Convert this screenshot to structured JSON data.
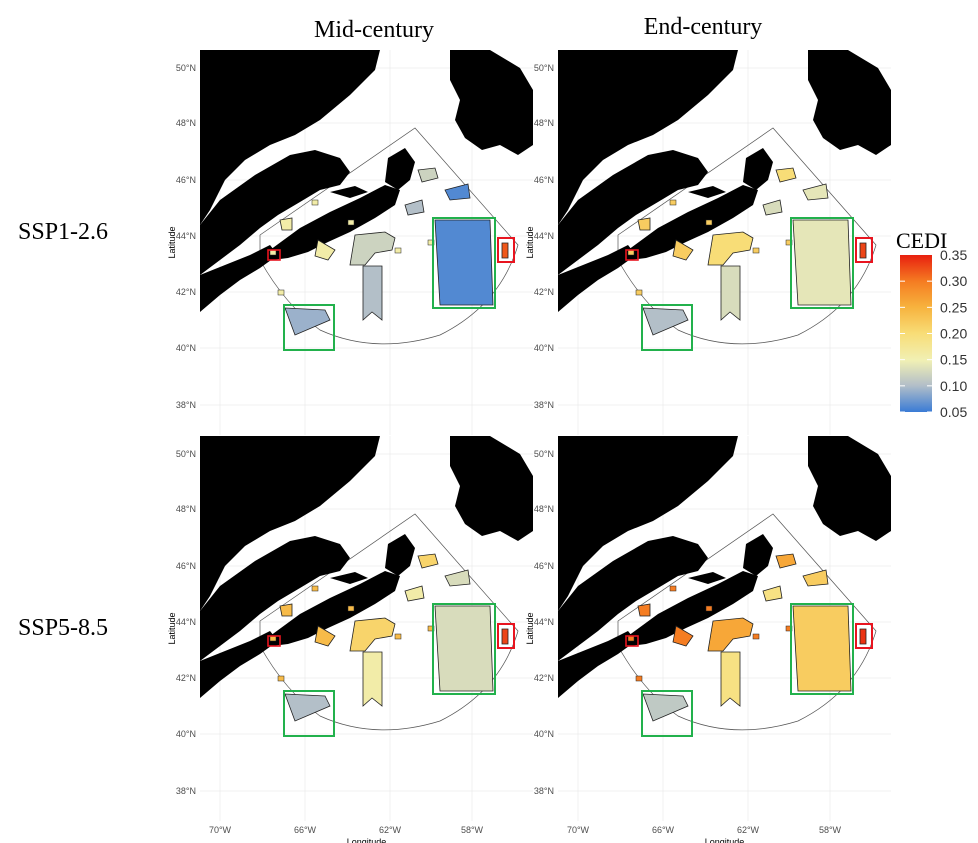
{
  "columns": [
    "Mid-century",
    "End-century"
  ],
  "rows": [
    "SSP1-2.6",
    "SSP5-8.5"
  ],
  "axes": {
    "latitude_ticks": [
      "50°N",
      "48°N",
      "46°N",
      "44°N",
      "42°N",
      "40°N",
      "38°N"
    ],
    "longitude_ticks": [
      "70°W",
      "66°W",
      "62°W",
      "58°W"
    ],
    "ylabel": "Latitude",
    "xlabel": "Longitude"
  },
  "legend": {
    "title": "CEDI",
    "ticks": [
      "0.35",
      "0.30",
      "0.25",
      "0.20",
      "0.15",
      "0.10",
      "0.05"
    ],
    "colors": [
      "#e8200f",
      "#f57d22",
      "#f7b23d",
      "#f8dd77",
      "#f1f0b4",
      "#b3bfc8",
      "#3a7bd5"
    ]
  },
  "colors": {
    "land": "#000000",
    "highlight_green": "#22b14c",
    "highlight_red": "#e8141f",
    "grid": "#ebebeb"
  },
  "chart_data": {
    "type": "heatmap",
    "value_label": "CEDI",
    "range": [
      0.05,
      0.35
    ],
    "panels": [
      {
        "row": "SSP1-2.6",
        "col": "Mid-century",
        "green_west": 0.09,
        "green_east": 0.06,
        "red_east": 0.32,
        "central_large": 0.12,
        "central_tall": 0.1,
        "west_small": 0.16
      },
      {
        "row": "SSP1-2.6",
        "col": "End-century",
        "green_west": 0.1,
        "green_east": 0.14,
        "red_east": 0.33,
        "central_large": 0.2,
        "central_tall": 0.13,
        "west_small": 0.22
      },
      {
        "row": "SSP5-8.5",
        "col": "Mid-century",
        "green_west": 0.1,
        "green_east": 0.13,
        "red_east": 0.33,
        "central_large": 0.21,
        "central_tall": 0.16,
        "west_small": 0.24
      },
      {
        "row": "SSP5-8.5",
        "col": "End-century",
        "green_west": 0.11,
        "green_east": 0.22,
        "red_east": 0.34,
        "central_large": 0.26,
        "central_tall": 0.19,
        "west_small": 0.3
      }
    ]
  }
}
